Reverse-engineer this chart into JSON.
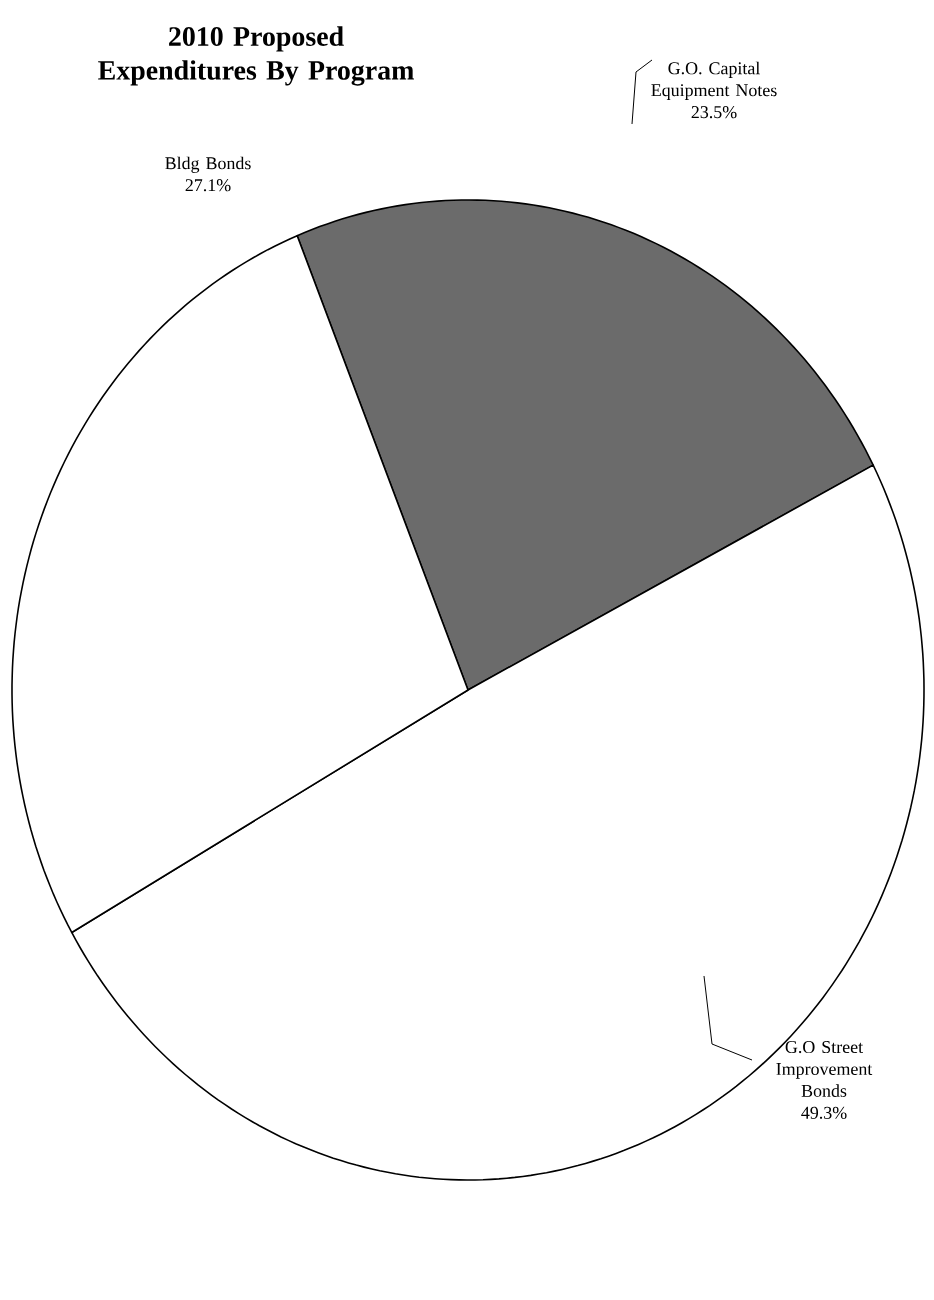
{
  "chart_data": {
    "type": "pie",
    "title": "2010 Proposed Expenditures By Program",
    "categories": [
      "G.O. Capital Equipment Notes",
      "G.O Street Improvement Bonds",
      "Bldg Bonds"
    ],
    "values": [
      23.5,
      49.3,
      27.1
    ],
    "value_labels": [
      "23.5%",
      "49.3%",
      "27.1%"
    ],
    "colors": [
      "#6b6b6b",
      "#ffffff",
      "#ffffff"
    ]
  }
}
